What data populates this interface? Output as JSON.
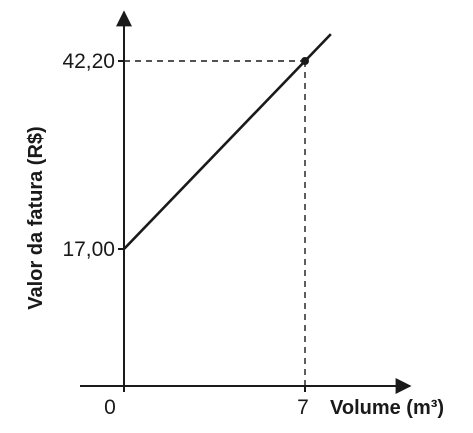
{
  "chart_data": {
    "type": "line",
    "xlabel": "Volume (m³)",
    "ylabel": "Valor da fatura (R$)",
    "origin_label": "0",
    "x_ticks": [
      7
    ],
    "x_tick_labels": [
      "7"
    ],
    "y_ticks": [
      17.0,
      42.2
    ],
    "y_tick_labels": [
      "17,00",
      "42,20"
    ],
    "series": [
      {
        "x": [
          0,
          8.0
        ],
        "y": [
          17.0,
          45.8
        ]
      }
    ],
    "highlight_point": {
      "x": 7,
      "y": 42.2
    },
    "grid": false,
    "legend": "none"
  }
}
